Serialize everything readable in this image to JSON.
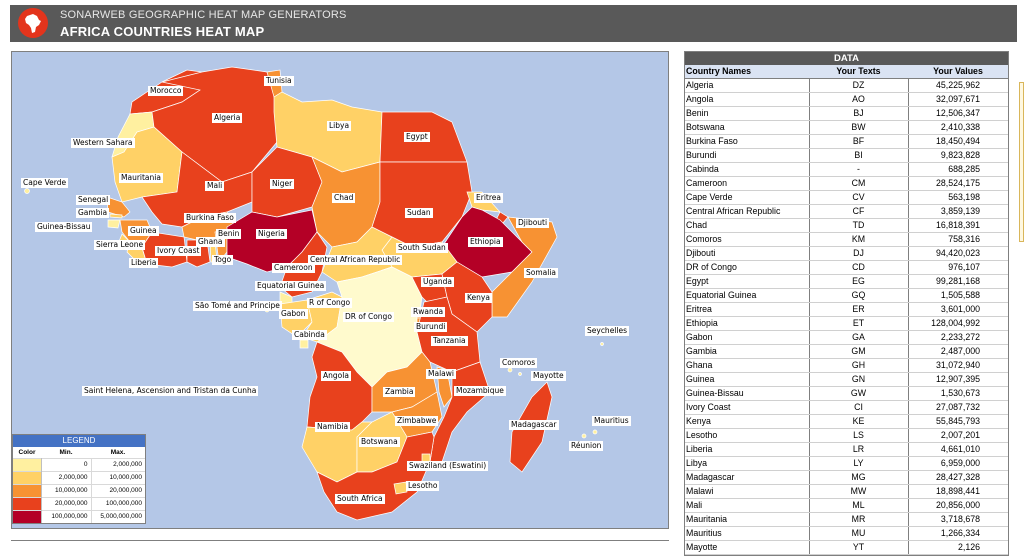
{
  "header": {
    "subtitle": "SONARWEB GEOGRAPHIC HEAT MAP GENERATORS",
    "title": "AFRICA COUNTRIES HEAT MAP",
    "logo_icon": "africa-logo-icon"
  },
  "colors": {
    "c1": "#fff0a0",
    "c2": "#ffd166",
    "c3": "#f79233",
    "c4": "#e8411d",
    "c5": "#b40026",
    "sea": "#b4c7e7",
    "nodata": "#fffacd"
  },
  "map": {
    "labels": [
      "Morocco",
      "Tunisia",
      "Algeria",
      "Libya",
      "Egypt",
      "Western Sahara",
      "Mauritania",
      "Mali",
      "Niger",
      "Chad",
      "Sudan",
      "Eritrea",
      "Djibouti",
      "Cape Verde",
      "Senegal",
      "Gambia",
      "Guinea-Bissau",
      "Guinea",
      "Sierra Leone",
      "Liberia",
      "Ivory Coast",
      "Burkina Faso",
      "Ghana",
      "Togo",
      "Benin",
      "Nigeria",
      "Ethiopia",
      "Somalia",
      "South Sudan",
      "Cameroon",
      "Central African Republic",
      "Equatorial Guinea",
      "São Tomé and Principe",
      "Gabon",
      "R of Congo",
      "DR of Congo",
      "Uganda",
      "Kenya",
      "Rwanda",
      "Burundi",
      "Tanzania",
      "Cabinda",
      "Seychelles",
      "Comoros",
      "Mayotte",
      "Angola",
      "Zambia",
      "Malawi",
      "Mozambique",
      "Saint Helena, Ascension and Tristan da Cunha",
      "Namibia",
      "Zimbabwe",
      "Madagascar",
      "Mauritius",
      "Réunion",
      "Botswana",
      "Swaziland (Eswatini)",
      "Lesotho",
      "South Africa"
    ]
  },
  "legend": {
    "title": "LEGEND",
    "headers": [
      "Color",
      "Min.",
      "Max."
    ],
    "rows": [
      {
        "min": "0",
        "max": "2,000,000"
      },
      {
        "min": "2,000,000",
        "max": "10,000,000"
      },
      {
        "min": "10,000,000",
        "max": "20,000,000"
      },
      {
        "min": "20,000,000",
        "max": "100,000,000"
      },
      {
        "min": "100,000,000",
        "max": "5,000,000,000"
      }
    ]
  },
  "data_table": {
    "title": "DATA",
    "headers": [
      "Country Names",
      "Your Texts",
      "Your Values"
    ],
    "rows": [
      [
        "Algeria",
        "DZ",
        "45,225,962"
      ],
      [
        "Angola",
        "AO",
        "32,097,671"
      ],
      [
        "Benin",
        "BJ",
        "12,506,347"
      ],
      [
        "Botswana",
        "BW",
        "2,410,338"
      ],
      [
        "Burkina Faso",
        "BF",
        "18,450,494"
      ],
      [
        "Burundi",
        "BI",
        "9,823,828"
      ],
      [
        "Cabinda",
        "-",
        "688,285"
      ],
      [
        "Cameroon",
        "CM",
        "28,524,175"
      ],
      [
        "Cape Verde",
        "CV",
        "563,198"
      ],
      [
        "Central African Republic",
        "CF",
        "3,859,139"
      ],
      [
        "Chad",
        "TD",
        "16,818,391"
      ],
      [
        "Comoros",
        "KM",
        "758,316"
      ],
      [
        "Djibouti",
        "DJ",
        "94,420,023"
      ],
      [
        "DR of Congo",
        "CD",
        "976,107"
      ],
      [
        "Egypt",
        "EG",
        "99,281,168"
      ],
      [
        "Equatorial Guinea",
        "GQ",
        "1,505,588"
      ],
      [
        "Eritrea",
        "ER",
        "3,601,000"
      ],
      [
        "Ethiopia",
        "ET",
        "128,004,992"
      ],
      [
        "Gabon",
        "GA",
        "2,233,272"
      ],
      [
        "Gambia",
        "GM",
        "2,487,000"
      ],
      [
        "Ghana",
        "GH",
        "31,072,940"
      ],
      [
        "Guinea",
        "GN",
        "12,907,395"
      ],
      [
        "Guinea-Bissau",
        "GW",
        "1,530,673"
      ],
      [
        "Ivory Coast",
        "CI",
        "27,087,732"
      ],
      [
        "Kenya",
        "KE",
        "55,845,793"
      ],
      [
        "Lesotho",
        "LS",
        "2,007,201"
      ],
      [
        "Liberia",
        "LR",
        "4,661,010"
      ],
      [
        "Libya",
        "LY",
        "6,959,000"
      ],
      [
        "Madagascar",
        "MG",
        "28,427,328"
      ],
      [
        "Malawi",
        "MW",
        "18,898,441"
      ],
      [
        "Mali",
        "ML",
        "20,856,000"
      ],
      [
        "Mauritania",
        "MR",
        "3,718,678"
      ],
      [
        "Mauritius",
        "MU",
        "1,266,334"
      ],
      [
        "Mayotte",
        "YT",
        "2,126"
      ]
    ]
  }
}
